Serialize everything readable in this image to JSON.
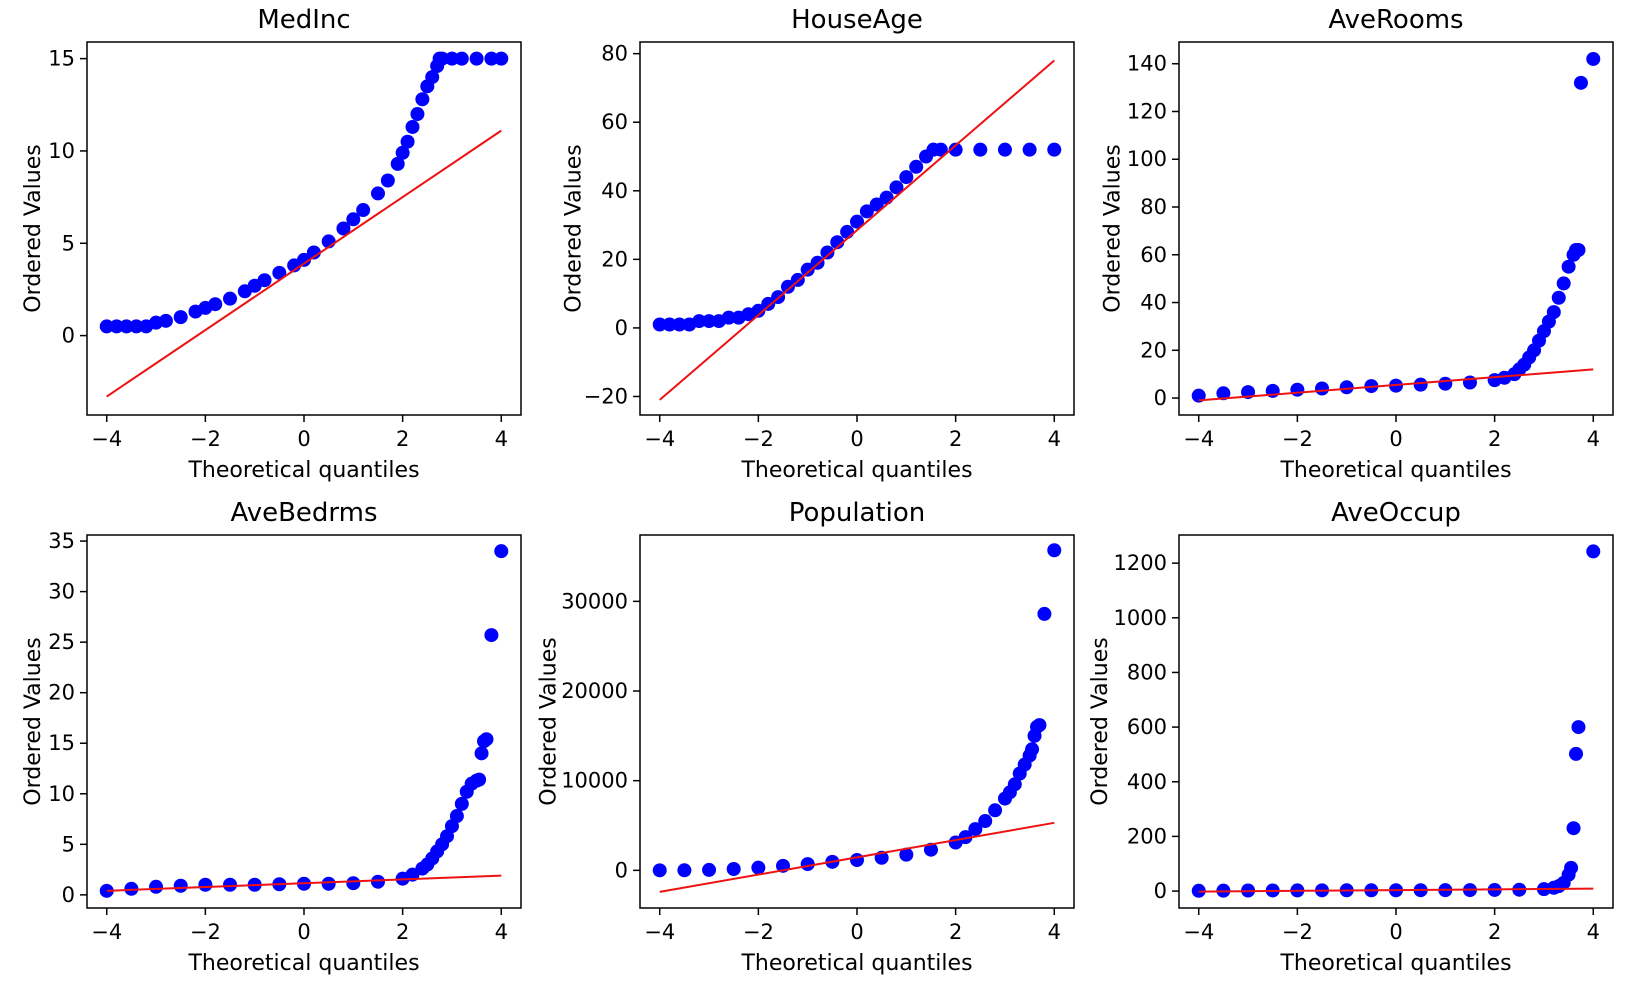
{
  "figure": {
    "colors": {
      "points": "#0000ff",
      "fit_line": "#ee1111",
      "axes": "#000000",
      "background": "#ffffff"
    }
  },
  "chart_data": [
    {
      "type": "scatter",
      "title": "MedInc",
      "xlabel": "Theoretical quantiles",
      "ylabel": "Ordered Values",
      "xlim": [
        -4.4,
        4.4
      ],
      "ylim": [
        -4.3,
        15.9
      ],
      "xticks": [
        -4,
        -2,
        0,
        2,
        4
      ],
      "yticks": [
        0,
        5,
        10,
        15
      ],
      "grid": false,
      "fit_line": {
        "x": [
          -4,
          4
        ],
        "y": [
          -3.3,
          11.1
        ]
      },
      "points": {
        "x": [
          -4,
          -3.8,
          -3.6,
          -3.4,
          -3.2,
          -3,
          -2.8,
          -2.5,
          -2.2,
          -2,
          -1.8,
          -1.5,
          -1.2,
          -1,
          -0.8,
          -0.5,
          -0.2,
          0,
          0.2,
          0.5,
          0.8,
          1,
          1.2,
          1.5,
          1.7,
          1.9,
          2,
          2.1,
          2.2,
          2.3,
          2.4,
          2.5,
          2.6,
          2.7,
          2.75,
          2.8,
          3,
          3.2,
          3.5,
          3.8,
          4
        ],
        "y": [
          0.5,
          0.5,
          0.5,
          0.5,
          0.5,
          0.7,
          0.8,
          1.0,
          1.3,
          1.5,
          1.7,
          2.0,
          2.4,
          2.7,
          3.0,
          3.4,
          3.8,
          4.1,
          4.5,
          5.1,
          5.8,
          6.3,
          6.8,
          7.7,
          8.4,
          9.3,
          9.9,
          10.5,
          11.3,
          12.0,
          12.8,
          13.5,
          14.0,
          14.6,
          15.0,
          15.0,
          15.0,
          15.0,
          15.0,
          15.0,
          15.0
        ]
      }
    },
    {
      "type": "scatter",
      "title": "HouseAge",
      "xlabel": "Theoretical quantiles",
      "ylabel": "Ordered Values",
      "xlim": [
        -4.4,
        4.4
      ],
      "ylim": [
        -25.4,
        83.4
      ],
      "xticks": [
        -4,
        -2,
        0,
        2,
        4
      ],
      "yticks": [
        -20,
        0,
        20,
        40,
        60,
        80
      ],
      "grid": false,
      "fit_line": {
        "x": [
          -4,
          4
        ],
        "y": [
          -21,
          78
        ]
      },
      "points": {
        "x": [
          -4,
          -3.8,
          -3.6,
          -3.4,
          -3.2,
          -3,
          -2.8,
          -2.6,
          -2.4,
          -2.2,
          -2,
          -1.8,
          -1.6,
          -1.4,
          -1.2,
          -1,
          -0.8,
          -0.6,
          -0.4,
          -0.2,
          0,
          0.2,
          0.4,
          0.6,
          0.8,
          1,
          1.2,
          1.4,
          1.55,
          1.7,
          2,
          2.5,
          3,
          3.5,
          4
        ],
        "y": [
          1,
          1,
          1,
          1,
          2,
          2,
          2,
          3,
          3,
          4,
          5,
          7,
          9,
          12,
          14,
          17,
          19,
          22,
          25,
          28,
          31,
          34,
          36,
          38,
          41,
          44,
          47,
          50,
          52,
          52,
          52,
          52,
          52,
          52,
          52
        ]
      }
    },
    {
      "type": "scatter",
      "title": "AveRooms",
      "xlabel": "Theoretical quantiles",
      "ylabel": "Ordered Values",
      "xlim": [
        -4.4,
        4.4
      ],
      "ylim": [
        -7.1,
        149.1
      ],
      "xticks": [
        -4,
        -2,
        0,
        2,
        4
      ],
      "yticks": [
        0,
        20,
        40,
        60,
        80,
        100,
        120,
        140
      ],
      "grid": false,
      "fit_line": {
        "x": [
          -4,
          4
        ],
        "y": [
          -1,
          12
        ]
      },
      "points": {
        "x": [
          -4,
          -3.5,
          -3,
          -2.5,
          -2,
          -1.5,
          -1,
          -0.5,
          0,
          0.5,
          1,
          1.5,
          2,
          2.2,
          2.4,
          2.5,
          2.6,
          2.7,
          2.8,
          2.9,
          3,
          3.1,
          3.2,
          3.3,
          3.4,
          3.5,
          3.6,
          3.65,
          3.7,
          3.75,
          4
        ],
        "y": [
          1,
          2,
          2.5,
          3,
          3.5,
          4,
          4.5,
          5,
          5.2,
          5.6,
          6,
          6.5,
          7.5,
          8.5,
          10,
          12,
          14,
          17,
          20,
          24,
          28,
          32,
          36,
          42,
          48,
          55,
          60,
          62,
          62,
          132,
          142
        ]
      }
    },
    {
      "type": "scatter",
      "title": "AveBedrms",
      "xlabel": "Theoretical quantiles",
      "ylabel": "Ordered Values",
      "xlim": [
        -4.4,
        4.4
      ],
      "ylim": [
        -1.3,
        35.6
      ],
      "xticks": [
        -4,
        -2,
        0,
        2,
        4
      ],
      "yticks": [
        0,
        5,
        10,
        15,
        20,
        25,
        30,
        35
      ],
      "grid": false,
      "fit_line": {
        "x": [
          -4,
          4
        ],
        "y": [
          0.4,
          1.9
        ]
      },
      "points": {
        "x": [
          -4,
          -3.5,
          -3,
          -2.5,
          -2,
          -1.5,
          -1,
          -0.5,
          0,
          0.5,
          1,
          1.5,
          2,
          2.2,
          2.4,
          2.5,
          2.6,
          2.7,
          2.8,
          2.9,
          3,
          3.1,
          3.2,
          3.3,
          3.4,
          3.5,
          3.55,
          3.6,
          3.65,
          3.7,
          3.8,
          4
        ],
        "y": [
          0.4,
          0.6,
          0.8,
          0.9,
          1.0,
          1.0,
          1.0,
          1.05,
          1.1,
          1.1,
          1.15,
          1.3,
          1.6,
          2.0,
          2.6,
          3.0,
          3.6,
          4.3,
          5.0,
          5.8,
          6.8,
          7.8,
          9.0,
          10.2,
          11.0,
          11.3,
          11.4,
          14.0,
          15.2,
          15.4,
          25.7,
          34.0
        ]
      }
    },
    {
      "type": "scatter",
      "title": "Population",
      "xlabel": "Theoretical quantiles",
      "ylabel": "Ordered Values",
      "xlim": [
        -4.4,
        4.4
      ],
      "ylim": [
        -4200,
        37400
      ],
      "xticks": [
        -4,
        -2,
        0,
        2,
        4
      ],
      "yticks": [
        0,
        10000,
        20000,
        30000
      ],
      "grid": false,
      "fit_line": {
        "x": [
          -4,
          4
        ],
        "y": [
          -2400,
          5300
        ]
      },
      "points": {
        "x": [
          -4,
          -3.5,
          -3,
          -2.5,
          -2,
          -1.5,
          -1,
          -0.5,
          0,
          0.5,
          1,
          1.5,
          2,
          2.2,
          2.4,
          2.6,
          2.8,
          3,
          3.1,
          3.2,
          3.3,
          3.4,
          3.5,
          3.55,
          3.6,
          3.65,
          3.7,
          3.8,
          4
        ],
        "y": [
          0,
          5,
          50,
          150,
          300,
          500,
          700,
          950,
          1150,
          1400,
          1750,
          2300,
          3100,
          3700,
          4600,
          5500,
          6700,
          8000,
          8700,
          9600,
          10800,
          11800,
          12800,
          13500,
          15000,
          16000,
          16200,
          28600,
          35700
        ]
      }
    },
    {
      "type": "scatter",
      "title": "AveOccup",
      "xlabel": "Theoretical quantiles",
      "ylabel": "Ordered Values",
      "xlim": [
        -4.4,
        4.4
      ],
      "ylim": [
        -62,
        1303
      ],
      "xticks": [
        -4,
        -2,
        0,
        2,
        4
      ],
      "yticks": [
        0,
        200,
        400,
        600,
        800,
        1000,
        1200
      ],
      "grid": false,
      "fit_line": {
        "x": [
          -4,
          4
        ],
        "y": [
          -2,
          9
        ]
      },
      "points": {
        "x": [
          -4,
          -3.5,
          -3,
          -2.5,
          -2,
          -1.5,
          -1,
          -0.5,
          0,
          0.5,
          1,
          1.5,
          2,
          2.5,
          3,
          3.2,
          3.3,
          3.4,
          3.5,
          3.55,
          3.6,
          3.65,
          3.7,
          4
        ],
        "y": [
          1,
          1.5,
          2,
          2.2,
          2.4,
          2.6,
          2.8,
          2.9,
          3,
          3.1,
          3.3,
          3.6,
          4,
          5,
          7,
          12,
          18,
          30,
          60,
          85,
          230,
          502,
          600,
          1243
        ]
      }
    }
  ]
}
